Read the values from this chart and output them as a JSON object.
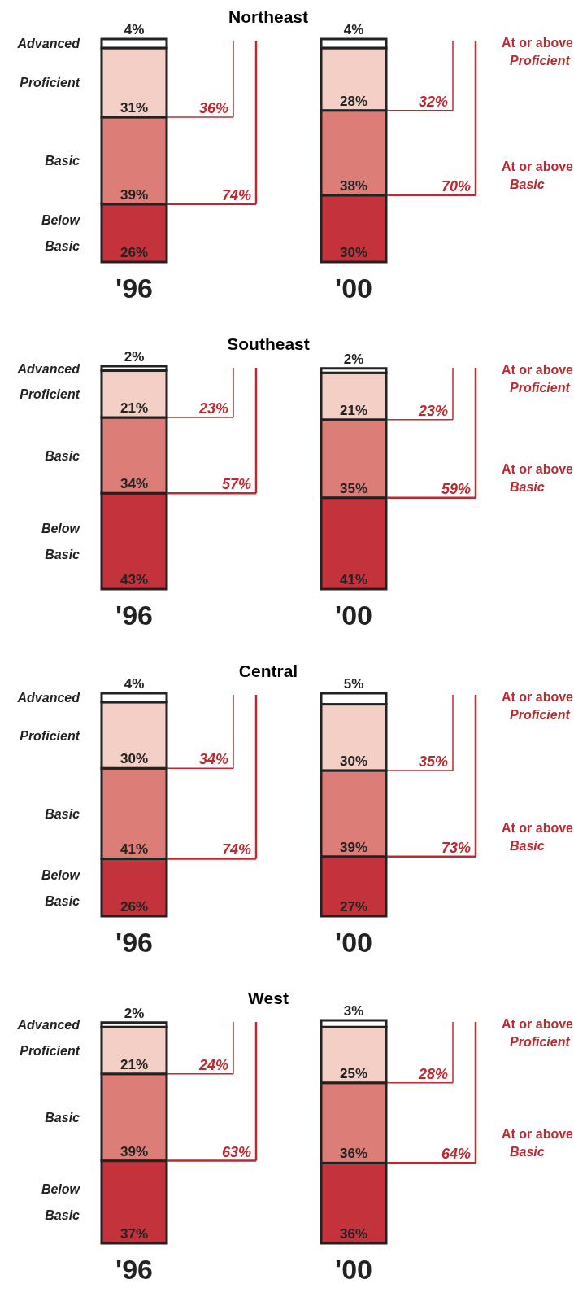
{
  "chart_data": [
    {
      "type": "bar",
      "stacked": true,
      "title": "Northeast",
      "categories": [
        "'96",
        "'00"
      ],
      "legend": false,
      "series": [
        {
          "name": "Below Basic",
          "color": "#c4333b",
          "values": [
            26,
            30
          ],
          "value_labels": [
            "26%",
            "30%"
          ]
        },
        {
          "name": "Basic",
          "color": "#dc7d78",
          "values": [
            39,
            38
          ],
          "value_labels": [
            "39%",
            "38%"
          ]
        },
        {
          "name": "Proficient",
          "color": "#f3cfc5",
          "values": [
            31,
            28
          ],
          "value_labels": [
            "31%",
            "28%"
          ]
        },
        {
          "name": "Advanced",
          "color": "#ffffff",
          "values": [
            4,
            4
          ],
          "value_labels": [
            "4%",
            "4%"
          ]
        }
      ],
      "annotations": [
        "36%",
        "74%",
        "32%",
        "70%",
        "At or above Proficient",
        "At or above Basic"
      ]
    },
    {
      "type": "bar",
      "stacked": true,
      "title": "Southeast",
      "categories": [
        "'96",
        "'00"
      ],
      "legend": false,
      "series": [
        {
          "name": "Below Basic",
          "color": "#c4333b",
          "values": [
            43,
            41
          ],
          "value_labels": [
            "43%",
            "41%"
          ]
        },
        {
          "name": "Basic",
          "color": "#dc7d78",
          "values": [
            34,
            35
          ],
          "value_labels": [
            "34%",
            "35%"
          ]
        },
        {
          "name": "Proficient",
          "color": "#f3cfc5",
          "values": [
            21,
            21
          ],
          "value_labels": [
            "21%",
            "21%"
          ]
        },
        {
          "name": "Advanced",
          "color": "#ffffff",
          "values": [
            2,
            2
          ],
          "value_labels": [
            "2%",
            "2%"
          ]
        }
      ],
      "annotations": [
        "23%",
        "57%",
        "23%",
        "59%",
        "At or above Proficient",
        "At or above Basic"
      ]
    },
    {
      "type": "bar",
      "stacked": true,
      "title": "Central",
      "categories": [
        "'96",
        "'00"
      ],
      "legend": false,
      "series": [
        {
          "name": "Below Basic",
          "color": "#c4333b",
          "values": [
            26,
            27
          ],
          "value_labels": [
            "26%",
            "27%"
          ]
        },
        {
          "name": "Basic",
          "color": "#dc7d78",
          "values": [
            41,
            39
          ],
          "value_labels": [
            "41%",
            "39%"
          ]
        },
        {
          "name": "Proficient",
          "color": "#f3cfc5",
          "values": [
            30,
            30
          ],
          "value_labels": [
            "30%",
            "30%"
          ]
        },
        {
          "name": "Advanced",
          "color": "#ffffff",
          "values": [
            4,
            5
          ],
          "value_labels": [
            "4%",
            "5%"
          ]
        }
      ],
      "annotations": [
        "34%",
        "74%",
        "35%",
        "73%",
        "At or above Proficient",
        "At or above Basic"
      ]
    },
    {
      "type": "bar",
      "stacked": true,
      "title": "West",
      "categories": [
        "'96",
        "'00"
      ],
      "legend": false,
      "series": [
        {
          "name": "Below Basic",
          "color": "#c4333b",
          "values": [
            37,
            36
          ],
          "value_labels": [
            "37%",
            "36%"
          ]
        },
        {
          "name": "Basic",
          "color": "#dc7d78",
          "values": [
            39,
            36
          ],
          "value_labels": [
            "39%",
            "36%"
          ]
        },
        {
          "name": "Proficient",
          "color": "#f3cfc5",
          "values": [
            21,
            25
          ],
          "value_labels": [
            "21%",
            "25%"
          ]
        },
        {
          "name": "Advanced",
          "color": "#ffffff",
          "values": [
            2,
            3
          ],
          "value_labels": [
            "2%",
            "3%"
          ]
        }
      ],
      "annotations": [
        "24%",
        "63%",
        "28%",
        "64%",
        "At or above Proficient",
        "At or above Basic"
      ]
    }
  ]
}
